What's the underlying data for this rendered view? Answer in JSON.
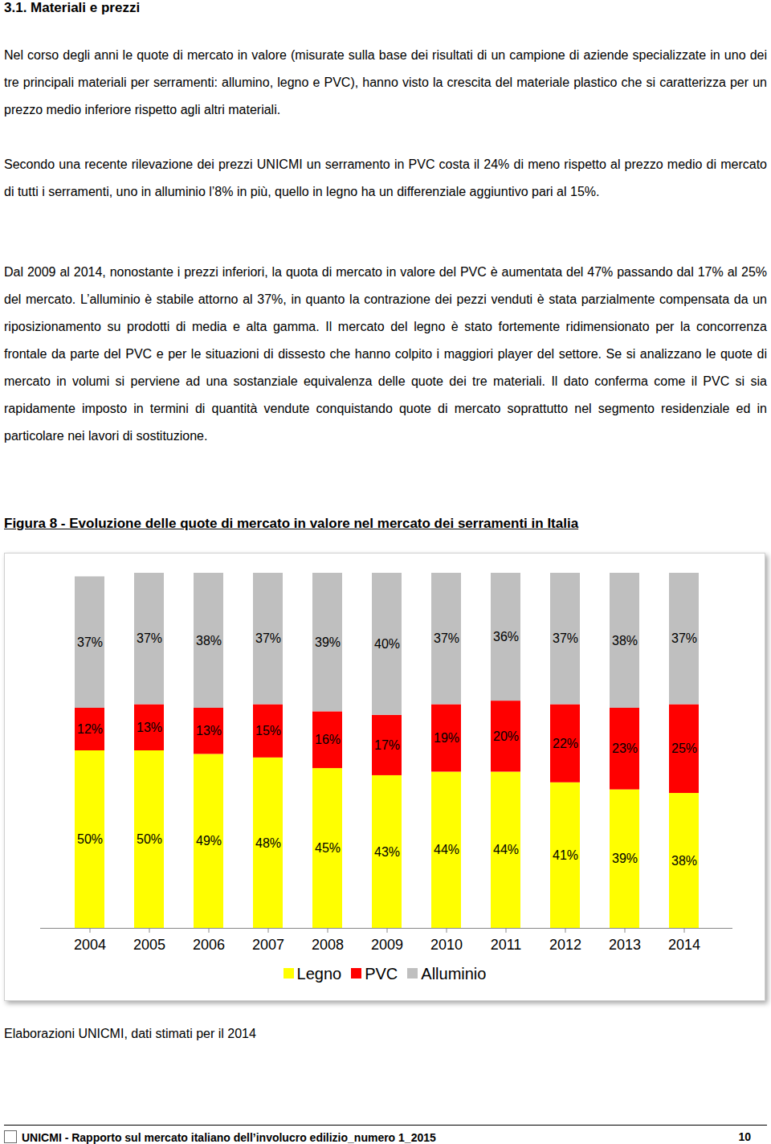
{
  "heading": "3.1. Materiali e prezzi",
  "paragraphs": [
    "Nel corso degli anni le quote di mercato in valore (misurate sulla base dei risultati di un campione di aziende specializzate in uno dei tre principali materiali per serramenti: allumino, legno e PVC), hanno visto la crescita del materiale plastico che si caratterizza per un prezzo medio inferiore rispetto agli altri materiali.",
    "Secondo una recente rilevazione dei prezzi UNICMI un serramento in PVC costa il 24% di meno rispetto al prezzo medio di mercato di tutti i serramenti, uno in alluminio l’8% in più, quello in legno ha un differenziale aggiuntivo pari al 15%.",
    "Dal 2009 al 2014, nonostante i prezzi inferiori, la quota di mercato in valore del PVC è aumentata del 47% passando dal 17% al 25% del mercato. L’alluminio è stabile attorno al 37%, in quanto la contrazione dei pezzi venduti è stata parzialmente compensata da un riposizionamento su prodotti di media e alta gamma. Il mercato del legno è stato fortemente ridimensionato per la concorrenza frontale da parte del PVC e per le situazioni di dissesto che hanno colpito i maggiori player del settore. Se si analizzano le quote di mercato in volumi si perviene ad una sostanziale equivalenza delle quote dei tre materiali. Il dato conferma come il PVC si sia rapidamente imposto in termini di quantità vendute conquistando quote di mercato soprattutto nel segmento residenziale ed in particolare nei lavori di sostituzione."
  ],
  "chart_data": {
    "type": "bar",
    "title": "Figura 8 - Evoluzione delle quote di mercato in valore nel mercato dei serramenti in Italia",
    "stacked": true,
    "data_labels": true,
    "tick_labels": "x",
    "legend": "bottom",
    "categories": [
      "2004",
      "2005",
      "2006",
      "2007",
      "2008",
      "2009",
      "2010",
      "2011",
      "2012",
      "2013",
      "2014"
    ],
    "ylim": [
      0,
      100
    ],
    "series": [
      {
        "name": "Legno",
        "color": "#ffff00",
        "values": [
          50,
          50,
          49,
          48,
          45,
          43,
          44,
          44,
          41,
          39,
          38
        ],
        "value_labels": [
          "50%",
          "50%",
          "49%",
          "48%",
          "45%",
          "43%",
          "44%",
          "44%",
          "41%",
          "39%",
          "38%"
        ]
      },
      {
        "name": "PVC",
        "color": "#ff0000",
        "values": [
          12,
          13,
          13,
          15,
          16,
          17,
          19,
          20,
          22,
          23,
          25
        ],
        "value_labels": [
          "12%",
          "13%",
          "13%",
          "15%",
          "16%",
          "17%",
          "19%",
          "20%",
          "22%",
          "23%",
          "25%"
        ]
      },
      {
        "name": "Alluminio",
        "color": "#bfbfbf",
        "values": [
          37,
          37,
          38,
          37,
          39,
          40,
          37,
          36,
          37,
          38,
          37
        ],
        "value_labels": [
          "37%",
          "37%",
          "38%",
          "37%",
          "39%",
          "40%",
          "37%",
          "36%",
          "37%",
          "38%",
          "37%"
        ]
      }
    ]
  },
  "caption": "Elaborazioni UNICMI, dati stimati per il 2014",
  "footer": {
    "text": "UNICMI - Rapporto sul mercato italiano dell’involucro edilizio_numero 1_2015",
    "page": "10"
  }
}
